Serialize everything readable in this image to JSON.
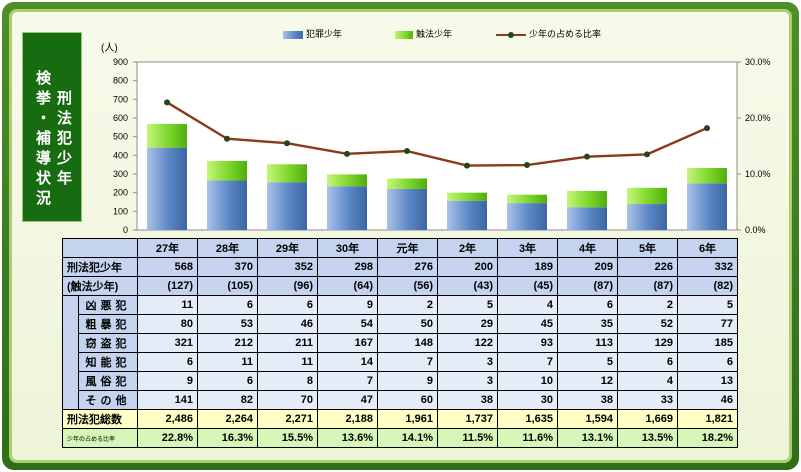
{
  "title": {
    "line1": "刑法犯少年",
    "line2": "検挙・補導状況"
  },
  "chart_data": {
    "type": "bar",
    "categories": [
      "27年",
      "28年",
      "29年",
      "30年",
      "元年",
      "2年",
      "3年",
      "4年",
      "5年",
      "6年"
    ],
    "series": [
      {
        "name": "犯罪少年",
        "type": "bar",
        "stacked": true,
        "values": [
          441,
          265,
          256,
          234,
          220,
          157,
          144,
          122,
          139,
          250
        ],
        "color": "#4f7fc0"
      },
      {
        "name": "触法少年",
        "type": "bar",
        "stacked": true,
        "values": [
          127,
          105,
          96,
          64,
          56,
          43,
          45,
          87,
          87,
          82
        ],
        "color": "#7cd62a"
      },
      {
        "name": "少年の占める比率",
        "type": "line",
        "axis": "right",
        "values": [
          22.8,
          16.3,
          15.5,
          13.6,
          14.1,
          11.5,
          11.6,
          13.1,
          13.5,
          18.2
        ],
        "color": "#8b3a1a"
      }
    ],
    "ylabel": "(人)",
    "ylim": [
      0,
      900
    ],
    "yticks": [
      "900",
      "800",
      "700",
      "600",
      "500",
      "400",
      "300",
      "200",
      "100",
      "0"
    ],
    "y2lim": [
      0,
      30
    ],
    "y2ticks": [
      "30.0%",
      "20.0%",
      "10.0%",
      "0.0%"
    ],
    "grid": false,
    "legend": "top"
  },
  "table": {
    "rows": [
      {
        "label": "刑法犯少年",
        "cells": [
          "568",
          "370",
          "352",
          "298",
          "276",
          "200",
          "189",
          "209",
          "226",
          "332"
        ]
      },
      {
        "label": "(触法少年)",
        "cells": [
          "(127)",
          "(105)",
          "(96)",
          "(64)",
          "(56)",
          "(43)",
          "(45)",
          "(87)",
          "(87)",
          "(82)"
        ]
      },
      {
        "label": "凶悪犯",
        "cells": [
          "11",
          "6",
          "6",
          "9",
          "2",
          "5",
          "4",
          "6",
          "2",
          "5"
        ]
      },
      {
        "label": "粗暴犯",
        "cells": [
          "80",
          "53",
          "46",
          "54",
          "50",
          "29",
          "45",
          "35",
          "52",
          "77"
        ]
      },
      {
        "label": "窃盗犯",
        "cells": [
          "321",
          "212",
          "211",
          "167",
          "148",
          "122",
          "93",
          "113",
          "129",
          "185"
        ]
      },
      {
        "label": "知能犯",
        "cells": [
          "6",
          "11",
          "11",
          "14",
          "7",
          "3",
          "7",
          "5",
          "6",
          "6"
        ]
      },
      {
        "label": "風俗犯",
        "cells": [
          "9",
          "6",
          "8",
          "7",
          "9",
          "3",
          "10",
          "12",
          "4",
          "13"
        ]
      },
      {
        "label": "その他",
        "cells": [
          "141",
          "82",
          "70",
          "47",
          "60",
          "38",
          "30",
          "38",
          "33",
          "46"
        ]
      },
      {
        "label": "刑法犯総数",
        "cells": [
          "2,486",
          "2,264",
          "2,271",
          "2,188",
          "1,961",
          "1,737",
          "1,635",
          "1,594",
          "1,669",
          "1,821"
        ]
      },
      {
        "label": "少年の占める比率",
        "cells": [
          "22.8%",
          "16.3%",
          "15.5%",
          "13.6%",
          "14.1%",
          "11.5%",
          "11.6%",
          "13.1%",
          "13.5%",
          "18.2%"
        ]
      }
    ]
  }
}
